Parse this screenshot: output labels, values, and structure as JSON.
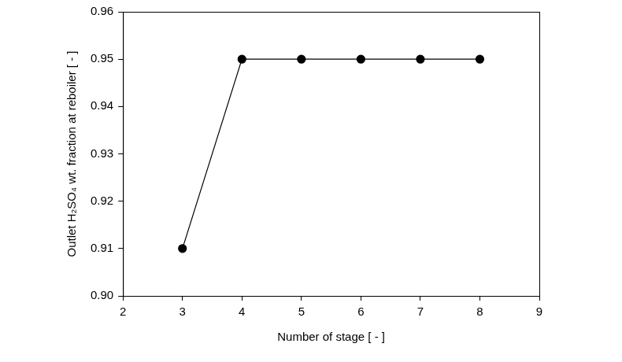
{
  "chart_data": {
    "type": "line",
    "x_label": "Number of stage [ - ]",
    "y_label": "Outlet H₂SO₄ wt. fraction at reboiler [ - ]",
    "x": [
      3,
      4,
      5,
      6,
      7,
      8
    ],
    "values": [
      0.91,
      0.95,
      0.95,
      0.95,
      0.95,
      0.95
    ],
    "color": "#000000",
    "marker": "circle",
    "line_style": "solid",
    "xlim": [
      2,
      9
    ],
    "xticks": [
      2,
      3,
      4,
      5,
      6,
      7,
      8,
      9
    ],
    "ylim": [
      0.9,
      0.96
    ],
    "yticks": [
      {
        "value": 0.9,
        "label": "0.90"
      },
      0.91,
      0.92,
      0.93,
      0.94,
      0.95,
      0.96
    ],
    "grid": false
  }
}
